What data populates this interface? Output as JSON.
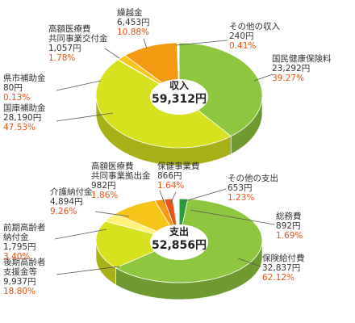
{
  "chart_data": [
    {
      "type": "pie",
      "center_label": "収入",
      "total_label": "59,312円",
      "slices": [
        {
          "name": "国民健康保険料",
          "amount": "23,292円",
          "percent": "39.27%",
          "value": 39.27,
          "color": "#8dc63f"
        },
        {
          "name": "国庫補助金",
          "amount": "28,190円",
          "percent": "47.53%",
          "value": 47.53,
          "color": "#d7e11d"
        },
        {
          "name": "県市補助金",
          "amount": "80円",
          "percent": "0.13%",
          "value": 0.13,
          "color": "#ffe57a"
        },
        {
          "name": "高額医療費\n共同事業交付金",
          "amount": "1,057円",
          "percent": "1.78%",
          "value": 1.78,
          "color": "#f7c418"
        },
        {
          "name": "繰越金",
          "amount": "6,453円",
          "percent": "10.88%",
          "value": 10.88,
          "color": "#f39a12"
        },
        {
          "name": "その他の収入",
          "amount": "240円",
          "percent": "0.41%",
          "value": 0.41,
          "color": "#ffffff"
        }
      ]
    },
    {
      "type": "pie",
      "center_label": "支出",
      "total_label": "52,856円",
      "slices": [
        {
          "name": "総務費",
          "amount": "892円",
          "percent": "1.69%",
          "value": 1.69,
          "color": "#2a9d3c"
        },
        {
          "name": "保険給付費",
          "amount": "32,837円",
          "percent": "62.12%",
          "value": 62.12,
          "color": "#8dc63f"
        },
        {
          "name": "後期高齢者\n支援金等",
          "amount": "9,937円",
          "percent": "18.80%",
          "value": 18.8,
          "color": "#d7e11d"
        },
        {
          "name": "前期高齢者\n納付金",
          "amount": "1,795円",
          "percent": "3.40%",
          "value": 3.4,
          "color": "#fff27a"
        },
        {
          "name": "介護納付金",
          "amount": "4,894円",
          "percent": "9.26%",
          "value": 9.26,
          "color": "#f7c418"
        },
        {
          "name": "高額医療費\n共同事業拠出金",
          "amount": "982円",
          "percent": "1.86%",
          "value": 1.86,
          "color": "#f39a12"
        },
        {
          "name": "保健事業費",
          "amount": "866円",
          "percent": "1.64%",
          "value": 1.64,
          "color": "#e8541a"
        },
        {
          "name": "その他の支出",
          "amount": "653円",
          "percent": "1.23%",
          "value": 1.23,
          "color": "#ffffff"
        }
      ]
    }
  ]
}
